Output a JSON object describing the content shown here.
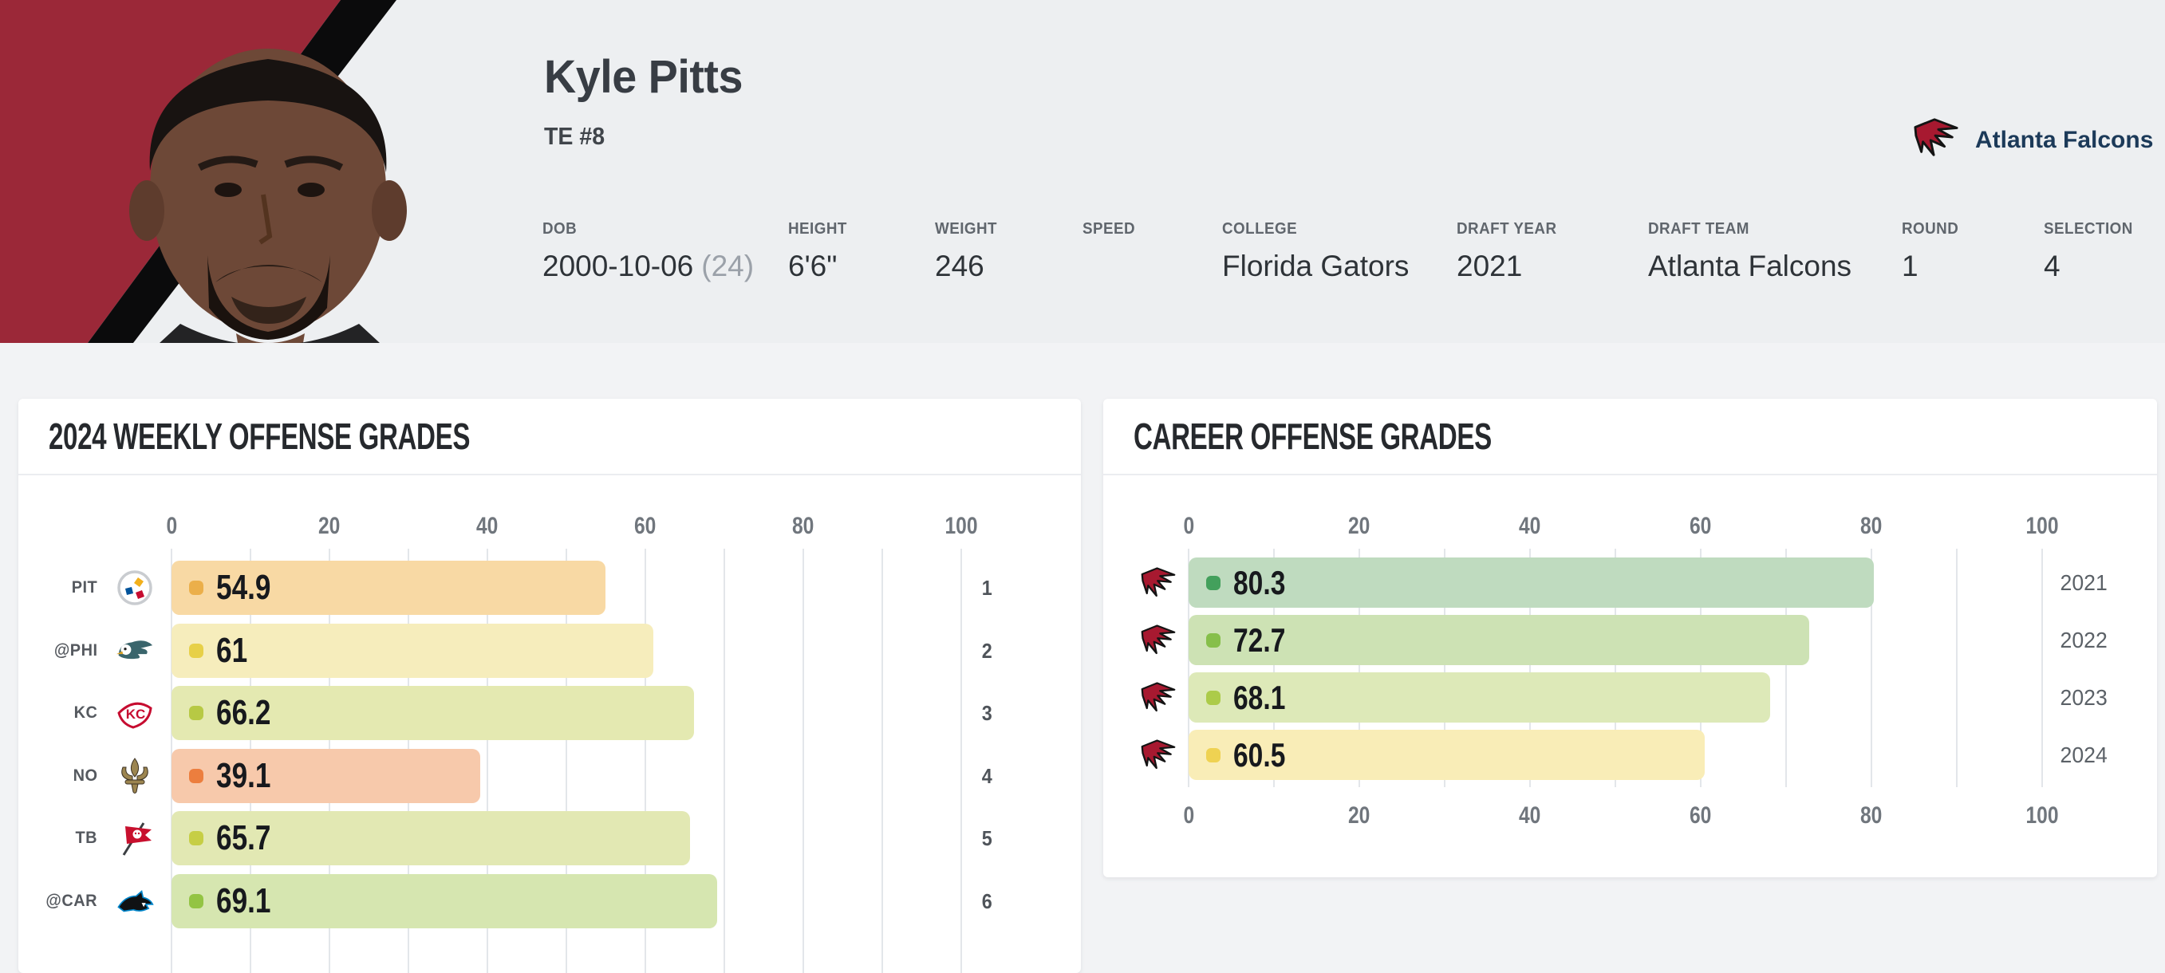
{
  "header": {
    "name": "Kyle Pitts",
    "position": "TE #8",
    "team": {
      "name": "Atlanta Falcons",
      "logo": "atlanta-falcons"
    },
    "info": [
      {
        "label": "DOB",
        "value": "2000-10-06",
        "note": "(24)"
      },
      {
        "label": "HEIGHT",
        "value": "6'6\"",
        "note": ""
      },
      {
        "label": "WEIGHT",
        "value": "246",
        "note": ""
      },
      {
        "label": "SPEED",
        "value": "",
        "note": ""
      },
      {
        "label": "COLLEGE",
        "value": "Florida Gators",
        "note": ""
      },
      {
        "label": "DRAFT YEAR",
        "value": "2021",
        "note": ""
      },
      {
        "label": "DRAFT TEAM",
        "value": "Atlanta Falcons",
        "note": ""
      },
      {
        "label": "ROUND",
        "value": "1",
        "note": ""
      },
      {
        "label": "SELECTION",
        "value": "4",
        "note": ""
      }
    ]
  },
  "chart_data": [
    {
      "type": "bar",
      "orientation": "horizontal",
      "title": "2024 WEEKLY OFFENSE GRADES",
      "xlim": [
        0,
        100
      ],
      "x_ticks": [
        0,
        20,
        40,
        60,
        80,
        100
      ],
      "axis_position": "top",
      "grid": true,
      "rows": [
        {
          "opponent": "PIT",
          "logo": "pittsburgh-steelers",
          "week": 1,
          "value": 54.9,
          "bar_color": "#f8d9a4",
          "dot_color": "#ebaf4a"
        },
        {
          "opponent": "@PHI",
          "logo": "philadelphia-eagles",
          "week": 2,
          "value": 61,
          "bar_color": "#f6edbc",
          "dot_color": "#e7d048"
        },
        {
          "opponent": "KC",
          "logo": "kansas-city-chiefs",
          "week": 3,
          "value": 66.2,
          "bar_color": "#e4e9b1",
          "dot_color": "#b7c944"
        },
        {
          "opponent": "NO",
          "logo": "new-orleans-saints",
          "week": 4,
          "value": 39.1,
          "bar_color": "#f7c9ab",
          "dot_color": "#ec7e3e"
        },
        {
          "opponent": "TB",
          "logo": "tampa-bay-buccaneers",
          "week": 5,
          "value": 65.7,
          "bar_color": "#e2e8b3",
          "dot_color": "#c6ce45"
        },
        {
          "opponent": "@CAR",
          "logo": "carolina-panthers",
          "week": 6,
          "value": 69.1,
          "bar_color": "#d6e6b0",
          "dot_color": "#93c443"
        }
      ]
    },
    {
      "type": "bar",
      "orientation": "horizontal",
      "title": "CAREER OFFENSE GRADES",
      "xlim": [
        0,
        100
      ],
      "x_ticks": [
        0,
        20,
        40,
        60,
        80,
        100
      ],
      "axis_position": "top-and-bottom",
      "grid": true,
      "rows": [
        {
          "year": "2021",
          "logo": "atlanta-falcons",
          "value": 80.3,
          "bar_color": "#bfdbbf",
          "dot_color": "#43a05c"
        },
        {
          "year": "2022",
          "logo": "atlanta-falcons",
          "value": 72.7,
          "bar_color": "#cde2b4",
          "dot_color": "#86bf4a"
        },
        {
          "year": "2023",
          "logo": "atlanta-falcons",
          "value": 68.1,
          "bar_color": "#dde9b8",
          "dot_color": "#accb49"
        },
        {
          "year": "2024",
          "logo": "atlanta-falcons",
          "value": 60.5,
          "bar_color": "#f9edb7",
          "dot_color": "#efd252"
        }
      ]
    }
  ]
}
